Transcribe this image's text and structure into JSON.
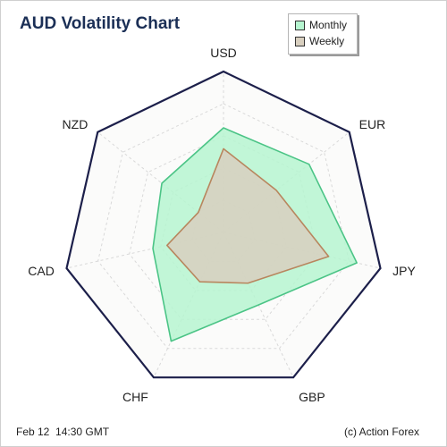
{
  "title": "AUD Volatility Chart",
  "footer": {
    "timestamp": "Feb 12  14:30 GMT",
    "credit": "(c) Action Forex"
  },
  "colors": {
    "monthly_fill": "#b6f5d0",
    "monthly_stroke": "#4bc486",
    "weekly_fill": "#d8cfbf",
    "weekly_stroke": "#b8865e",
    "outline": "#1c1f4a",
    "grid": "#d9d9d9"
  },
  "chart_data": {
    "type": "radar",
    "title": "AUD Volatility Chart",
    "axes": [
      "USD",
      "EUR",
      "JPY",
      "GBP",
      "CHF",
      "CAD",
      "NZD"
    ],
    "rmax": 100,
    "grid_rings": 5,
    "legend_position": "top-right",
    "series": [
      {
        "name": "Monthly",
        "values": [
          65,
          68,
          85,
          50,
          75,
          45,
          49
        ]
      },
      {
        "name": "Weekly",
        "values": [
          52,
          42,
          67,
          35,
          34,
          36,
          20
        ]
      }
    ]
  }
}
